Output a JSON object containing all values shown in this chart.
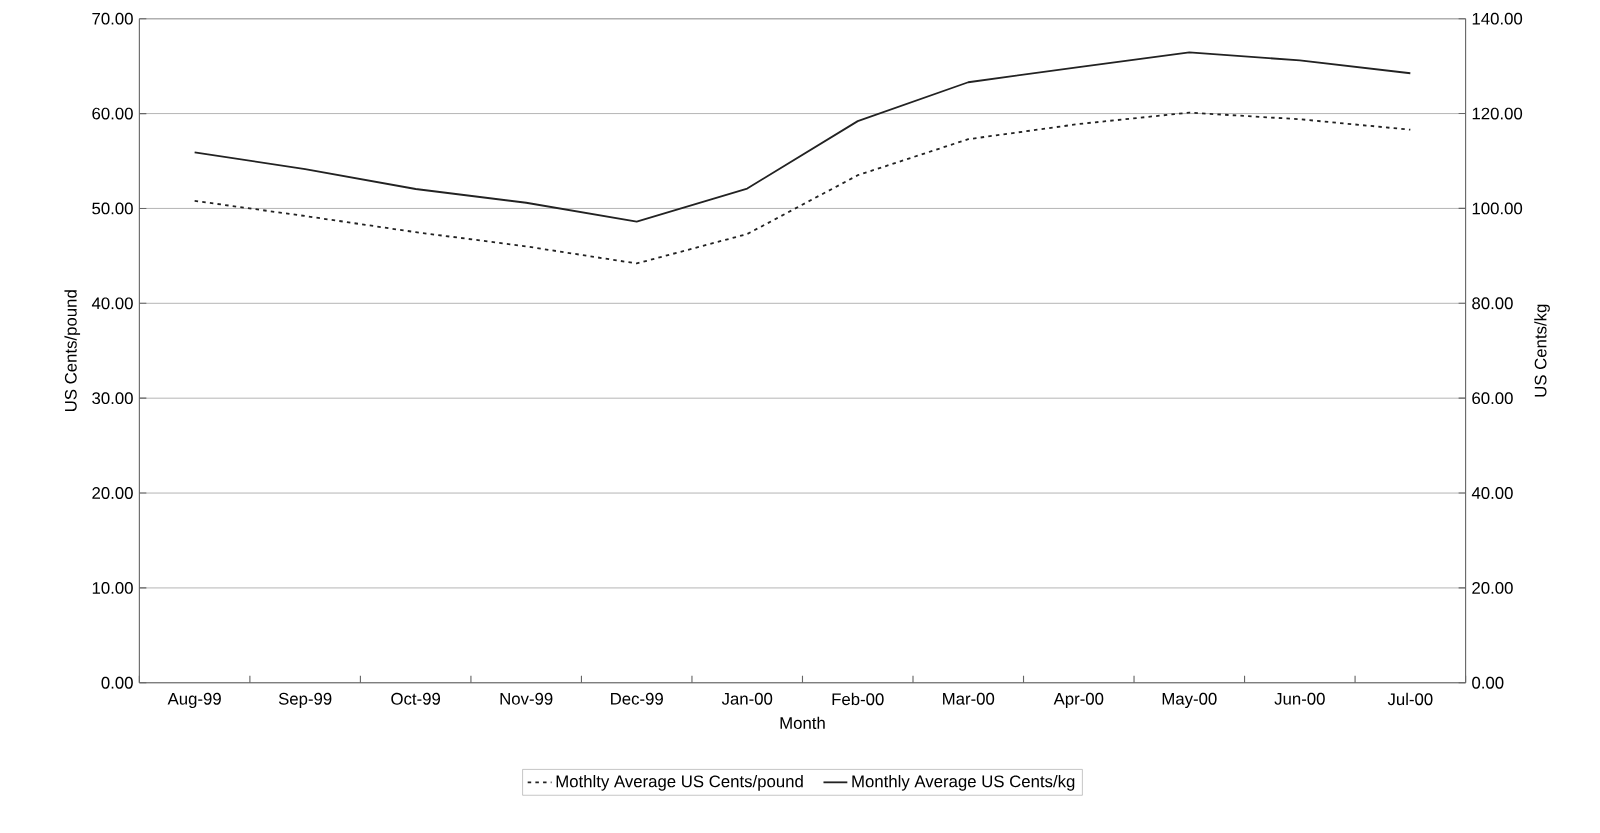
{
  "chart_data": {
    "type": "line",
    "xlabel": "Month",
    "ylabel": "US Cents/pound",
    "y2label": "US Cents/kg",
    "categories": [
      "Aug-99",
      "Sep-99",
      "Oct-99",
      "Nov-99",
      "Dec-99",
      "Jan-00",
      "Feb-00",
      "Mar-00",
      "Apr-00",
      "May-00",
      "Jun-00",
      "Jul-00"
    ],
    "series": [
      {
        "name": "Mothlty Average US Cents/pound",
        "color": "#222222",
        "line_style": "dotted",
        "values": [
          50.8,
          49.2,
          47.5,
          46.0,
          44.2,
          47.3,
          53.5,
          57.3,
          58.9,
          60.1,
          59.4,
          58.3
        ]
      },
      {
        "name": "Monthly Average US Cents/kg",
        "color": "#222222",
        "line_style": "solid",
        "axis": "y2",
        "values": [
          111.8,
          108.3,
          104.1,
          101.2,
          97.2,
          104.2,
          118.4,
          126.6,
          129.8,
          132.9,
          131.2,
          128.5
        ]
      }
    ],
    "ylim": [
      0,
      70
    ],
    "yticks": [
      {
        "value": 0,
        "label": "0.00"
      },
      {
        "value": 10,
        "label": "10.00"
      },
      {
        "value": 20,
        "label": "20.00"
      },
      {
        "value": 30,
        "label": "30.00"
      },
      {
        "value": 40,
        "label": "40.00"
      },
      {
        "value": 50,
        "label": "50.00"
      },
      {
        "value": 60,
        "label": "60.00"
      },
      {
        "value": 70,
        "label": "70.00"
      }
    ],
    "y2lim": [
      0,
      140
    ],
    "y2ticks": [
      {
        "value": 0,
        "label": "0.00"
      },
      {
        "value": 20,
        "label": "20.00"
      },
      {
        "value": 40,
        "label": "40.00"
      },
      {
        "value": 60,
        "label": "60.00"
      },
      {
        "value": 80,
        "label": "80.00"
      },
      {
        "value": 100,
        "label": "100.00"
      },
      {
        "value": 120,
        "label": "120.00"
      },
      {
        "value": 140,
        "label": "140.00"
      }
    ],
    "grid": "y",
    "legend": "bottom",
    "marker": "none"
  }
}
